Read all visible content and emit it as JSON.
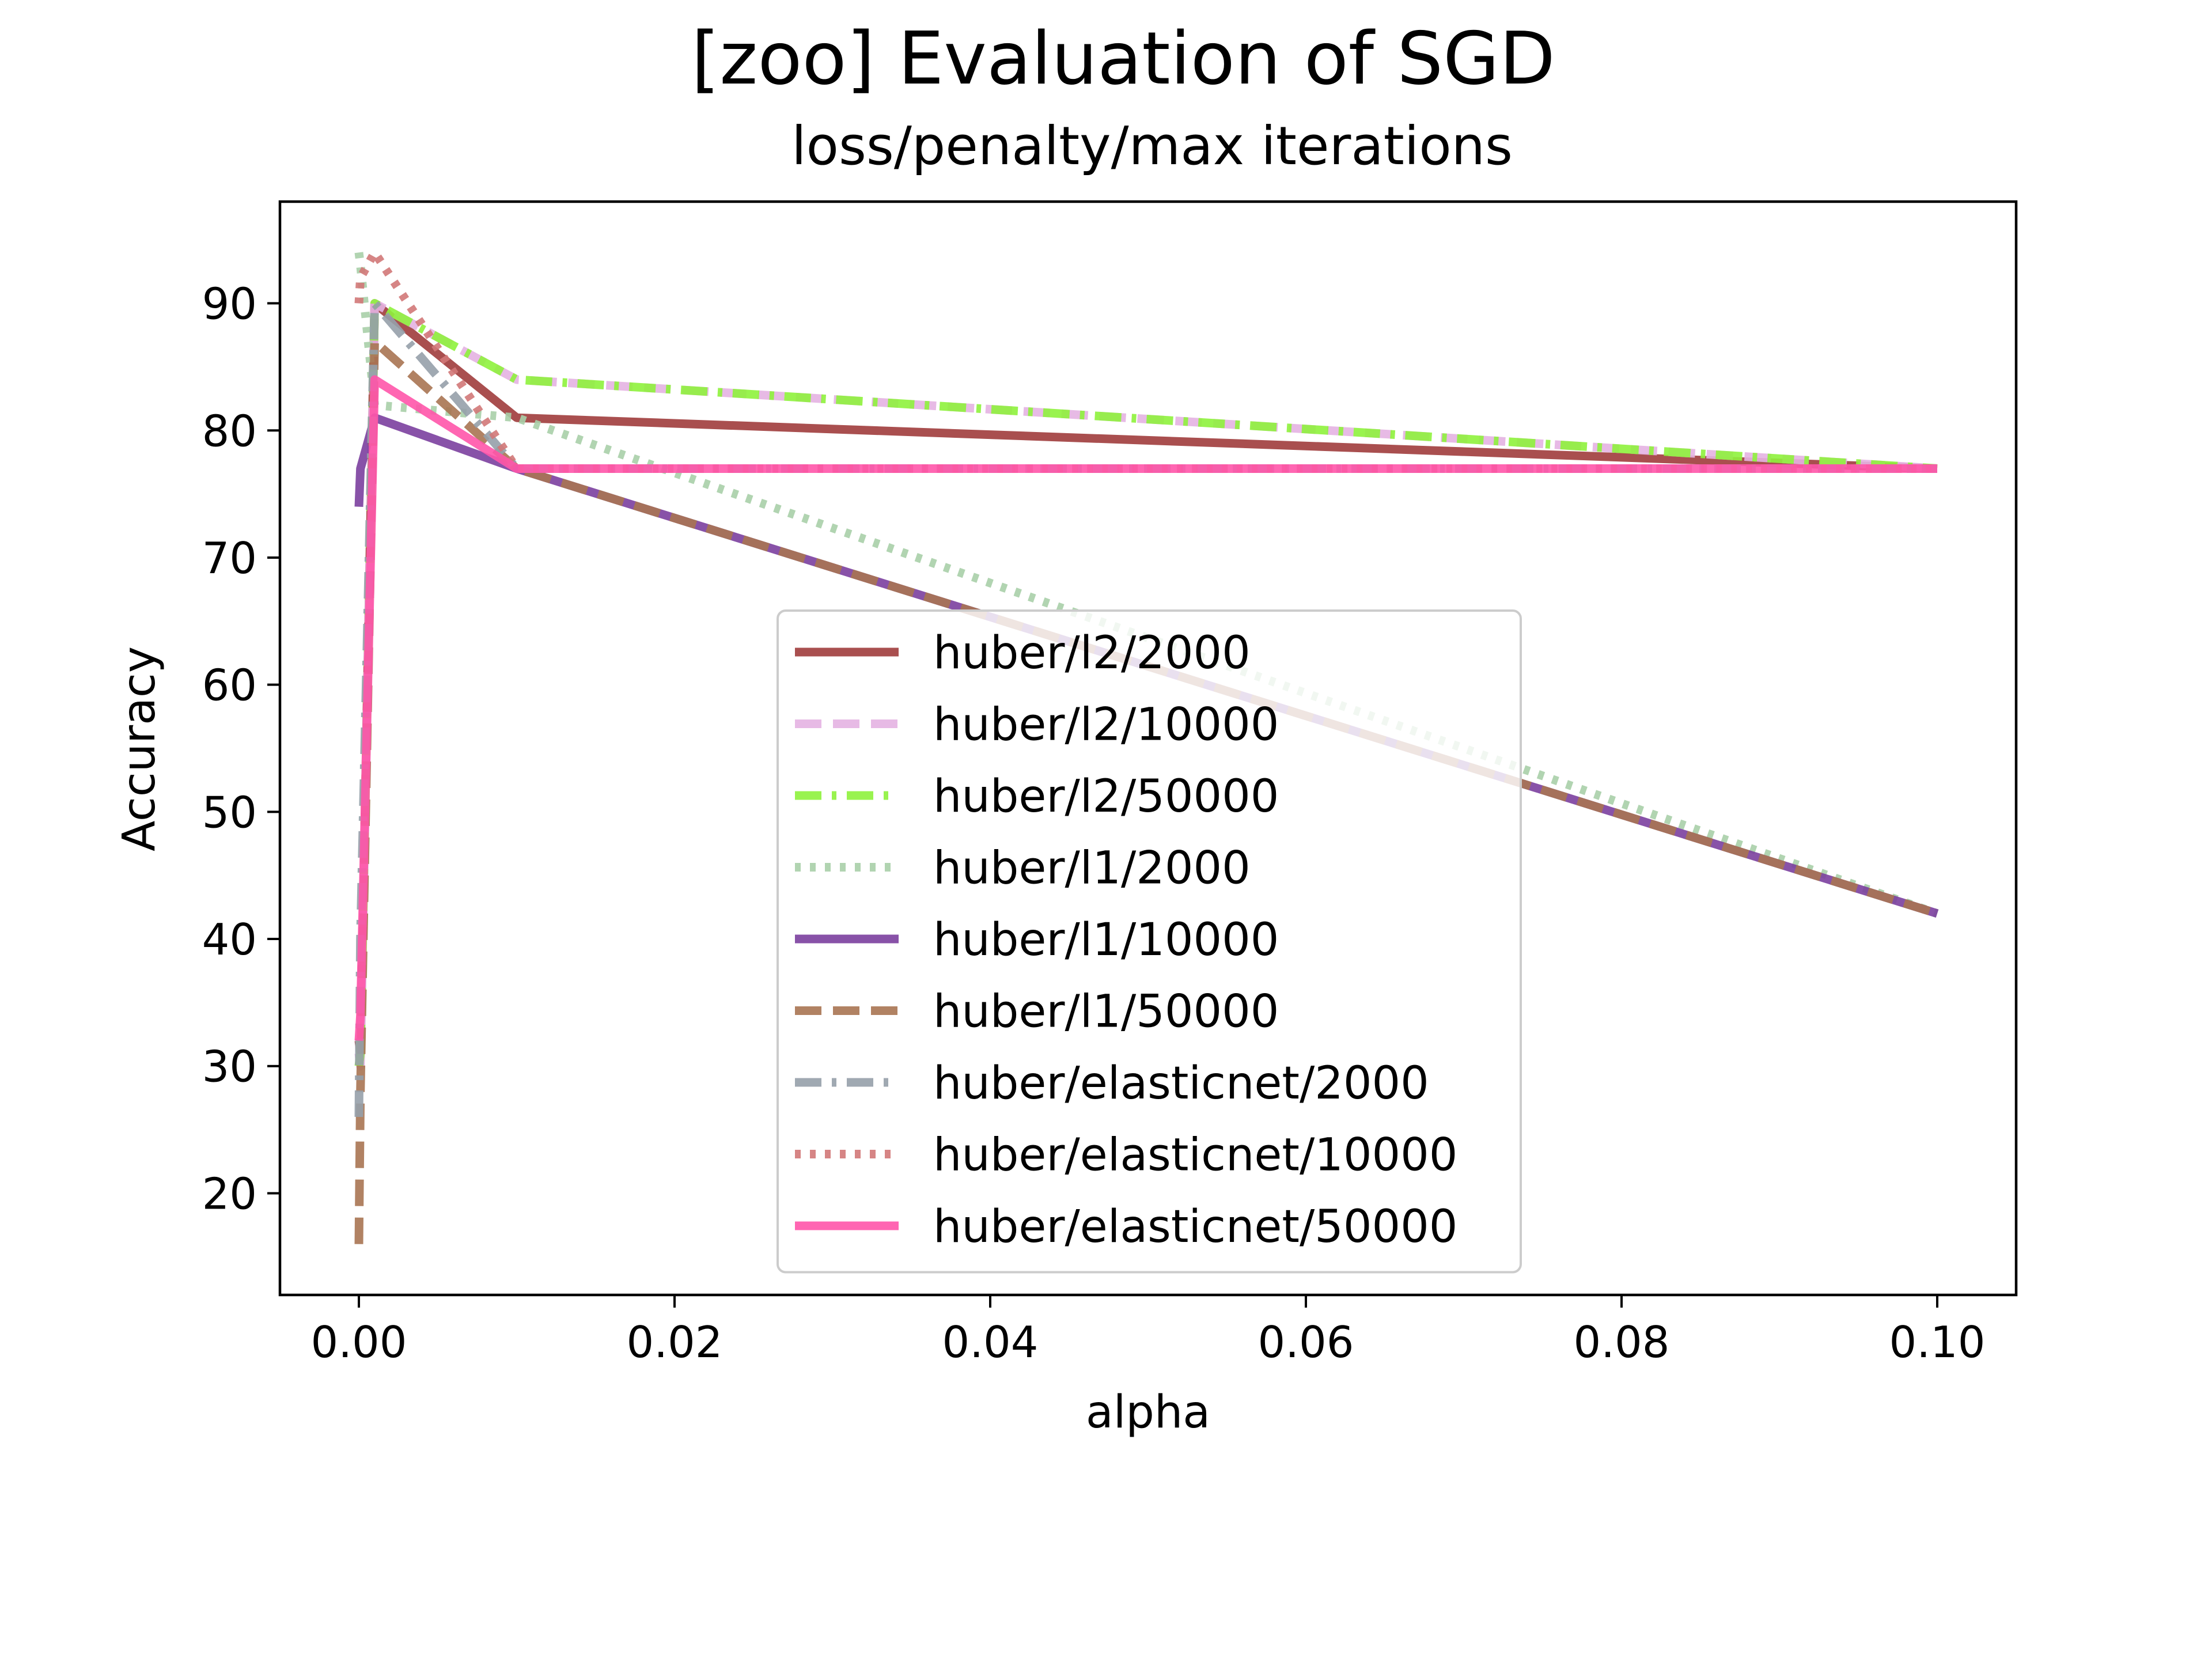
{
  "chart_data": {
    "type": "line",
    "title": "[zoo] Evaluation of SGD",
    "subtitle": "loss/penalty/max iterations",
    "xlabel": "alpha",
    "ylabel": "Accuracy",
    "x": [
      0.0,
      0.0001,
      0.001,
      0.01,
      0.1
    ],
    "xlim": [
      -0.005,
      0.105
    ],
    "ylim": [
      12,
      98
    ],
    "xticks": [
      {
        "value": 0.0,
        "label": "0.00"
      },
      {
        "value": 0.02,
        "label": "0.02"
      },
      {
        "value": 0.04,
        "label": "0.04"
      },
      {
        "value": 0.06,
        "label": "0.06"
      },
      {
        "value": 0.08,
        "label": "0.08"
      },
      {
        "value": 0.1,
        "label": "0.10"
      }
    ],
    "yticks": [
      {
        "value": 20,
        "label": "20"
      },
      {
        "value": 30,
        "label": "30"
      },
      {
        "value": 40,
        "label": "40"
      },
      {
        "value": 50,
        "label": "50"
      },
      {
        "value": 60,
        "label": "60"
      },
      {
        "value": 70,
        "label": "70"
      },
      {
        "value": 80,
        "label": "80"
      },
      {
        "value": 90,
        "label": "90"
      }
    ],
    "grid": false,
    "legend_position": "center",
    "series": [
      {
        "name": "huber/l2/2000",
        "color": "#a03c3c",
        "dash": "solid",
        "values": [
          32,
          31,
          90,
          81,
          77
        ]
      },
      {
        "name": "huber/l2/10000",
        "color": "#e4b3e2",
        "dash": "dashed",
        "values": [
          31,
          30,
          90,
          84,
          77
        ]
      },
      {
        "name": "huber/l2/50000",
        "color": "#8ef23c",
        "dash": "dashdot",
        "values": [
          30,
          31,
          90,
          84,
          77
        ]
      },
      {
        "name": "huber/l1/2000",
        "color": "#a9cfa9",
        "dash": "dotted",
        "values": [
          94,
          93,
          82,
          81,
          42
        ]
      },
      {
        "name": "huber/l1/10000",
        "color": "#7b3f9e",
        "dash": "solid",
        "values": [
          74,
          77,
          81,
          77,
          42
        ]
      },
      {
        "name": "huber/l1/50000",
        "color": "#a87452",
        "dash": "dashed",
        "values": [
          16,
          28,
          87,
          77,
          42
        ]
      },
      {
        "name": "huber/elasticnet/2000",
        "color": "#96a0aa",
        "dash": "dashdot",
        "values": [
          26,
          40,
          90,
          77,
          77
        ]
      },
      {
        "name": "huber/elasticnet/10000",
        "color": "#d27878",
        "dash": "dotted",
        "values": [
          90,
          92,
          94,
          77,
          77
        ]
      },
      {
        "name": "huber/elasticnet/50000",
        "color": "#ff55aa",
        "dash": "solid",
        "values": [
          32,
          34,
          84,
          77,
          77
        ]
      }
    ]
  }
}
